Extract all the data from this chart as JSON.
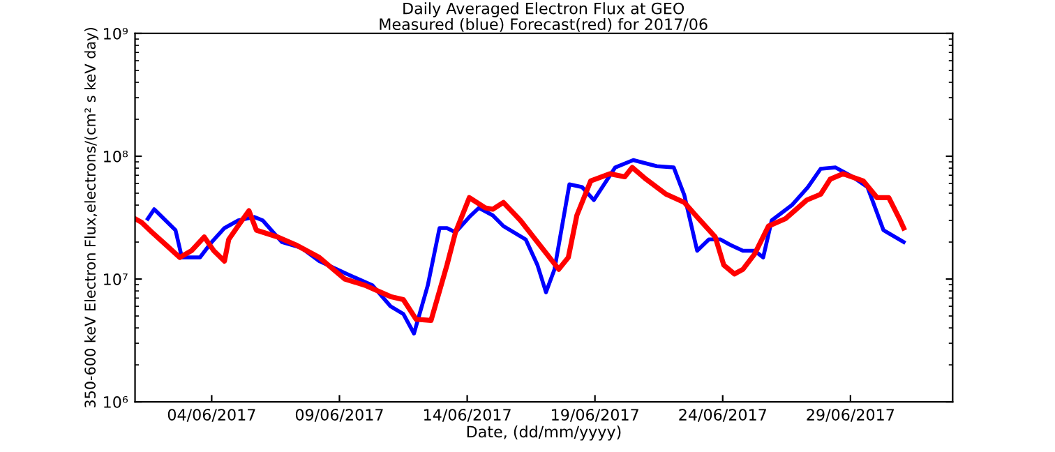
{
  "chart_data": {
    "type": "line",
    "title": "Daily Averaged Electron Flux at GEO",
    "subtitle": "Measured (blue) Forecast(red) for 2017/06",
    "xlabel": "Date, (dd/mm/yyyy)",
    "ylabel": "350-600 keV Electron Flux,electrons/(cm² s keV day)",
    "log": "y",
    "grid": false,
    "marker": "none",
    "line_style": "solid",
    "xlim": [
      "2017-06-01",
      "2017-07-03"
    ],
    "xticks": [
      {
        "value": "2017-06-04",
        "label": "04/06/2017"
      },
      {
        "value": "2017-06-09",
        "label": "09/06/2017"
      },
      {
        "value": "2017-06-14",
        "label": "14/06/2017"
      },
      {
        "value": "2017-06-19",
        "label": "19/06/2017"
      },
      {
        "value": "2017-06-24",
        "label": "24/06/2017"
      },
      {
        "value": "2017-06-29",
        "label": "29/06/2017"
      }
    ],
    "ylim": [
      1000000,
      1000000000
    ],
    "yticks": [
      {
        "value": 1000000,
        "label": "10⁶"
      },
      {
        "value": 10000000,
        "label": "10⁷"
      },
      {
        "value": 100000000,
        "label": "10⁸"
      },
      {
        "value": 1000000000,
        "label": "10⁹"
      }
    ],
    "series": [
      {
        "color": "#0000ff",
        "x": [
          "2017-06-01T12:00",
          "2017-06-01T18:00",
          "2017-06-02T14:00",
          "2017-06-02T20:00",
          "2017-06-03T05:00",
          "2017-06-03T13:00",
          "2017-06-04T00:00",
          "2017-06-04T12:00",
          "2017-06-05T01:00",
          "2017-06-05T16:00",
          "2017-06-06T00:00",
          "2017-06-06T18:00",
          "2017-06-07T12:00",
          "2017-06-08T05:00",
          "2017-06-09T07:00",
          "2017-06-10T07:00",
          "2017-06-11T00:00",
          "2017-06-11T12:00",
          "2017-06-11T22:00",
          "2017-06-12T11:00",
          "2017-06-12T22:00",
          "2017-06-13T05:00",
          "2017-06-13T13:00",
          "2017-06-14T02:00",
          "2017-06-14T11:00",
          "2017-06-15T00:00",
          "2017-06-15T10:00",
          "2017-06-16T07:00",
          "2017-06-16T18:00",
          "2017-06-17T02:00",
          "2017-06-17T10:00",
          "2017-06-18T00:00",
          "2017-06-18T12:00",
          "2017-06-18T23:00",
          "2017-06-19T19:00",
          "2017-06-20T12:00",
          "2017-06-21T10:00",
          "2017-06-22T02:00",
          "2017-06-22T12:00",
          "2017-06-23T00:00",
          "2017-06-23T11:00",
          "2017-06-23T22:00",
          "2017-06-24T07:00",
          "2017-06-24T19:00",
          "2017-06-25T06:00",
          "2017-06-25T14:00",
          "2017-06-25T22:00",
          "2017-06-26T17:00",
          "2017-06-27T08:00",
          "2017-06-27T20:00",
          "2017-06-28T10:00",
          "2017-06-29T02:00",
          "2017-06-29T16:00",
          "2017-06-30T07:00",
          "2017-07-01T02:00"
        ],
        "values": [
          31000000.0,
          37000000.0,
          25000000.0,
          15000000.0,
          15000000.0,
          15000000.0,
          20000000.0,
          26000000.0,
          30000000.0,
          32000000.0,
          30000000.0,
          20000000.0,
          18000000.0,
          14000000.0,
          11000000.0,
          8900000.0,
          6000000.0,
          5200000.0,
          3600000.0,
          8900000.0,
          26000000.0,
          26000000.0,
          24000000.0,
          32000000.0,
          38000000.0,
          33000000.0,
          27000000.0,
          21000000.0,
          13000000.0,
          7800000.0,
          12000000.0,
          59000000.0,
          56000000.0,
          44000000.0,
          81000000.0,
          93000000.0,
          83000000.0,
          81000000.0,
          48000000.0,
          17000000.0,
          21000000.0,
          21000000.0,
          19000000.0,
          17000000.0,
          17000000.0,
          15000000.0,
          30000000.0,
          40000000.0,
          56000000.0,
          79000000.0,
          81000000.0,
          68000000.0,
          56000000.0,
          25000000.0,
          20000000.0
        ]
      },
      {
        "color": "#ff0000",
        "x": [
          "2017-06-01T00:00",
          "2017-06-01T06:00",
          "2017-06-01T16:00",
          "2017-06-02T05:00",
          "2017-06-02T18:00",
          "2017-06-03T05:00",
          "2017-06-03T17:00",
          "2017-06-04T02:00",
          "2017-06-04T12:00",
          "2017-06-04T16:00",
          "2017-06-05T02:00",
          "2017-06-05T11:00",
          "2017-06-05T18:00",
          "2017-06-06T14:00",
          "2017-06-07T07:00",
          "2017-06-08T05:00",
          "2017-06-09T05:00",
          "2017-06-10T00:00",
          "2017-06-11T00:00",
          "2017-06-11T12:00",
          "2017-06-12T00:00",
          "2017-06-12T14:00",
          "2017-06-13T05:00",
          "2017-06-13T13:00",
          "2017-06-14T02:00",
          "2017-06-14T17:00",
          "2017-06-15T00:00",
          "2017-06-15T10:00",
          "2017-06-16T02:00",
          "2017-06-16T20:00",
          "2017-06-17T14:00",
          "2017-06-17T23:00",
          "2017-06-18T07:00",
          "2017-06-18T20:00",
          "2017-06-19T14:00",
          "2017-06-20T04:00",
          "2017-06-20T11:00",
          "2017-06-21T00:00",
          "2017-06-21T19:00",
          "2017-06-22T12:00",
          "2017-06-23T00:00",
          "2017-06-23T17:00",
          "2017-06-24T01:00",
          "2017-06-24T11:00",
          "2017-06-24T19:00",
          "2017-06-25T06:00",
          "2017-06-25T19:00",
          "2017-06-26T11:00",
          "2017-06-27T07:00",
          "2017-06-27T20:00",
          "2017-06-28T05:00",
          "2017-06-28T17:00",
          "2017-06-29T12:00",
          "2017-06-30T01:00",
          "2017-06-30T12:00",
          "2017-06-30T22:00",
          "2017-07-01T02:00"
        ],
        "values": [
          31000000.0,
          29000000.0,
          24000000.0,
          19000000.0,
          15000000.0,
          17000000.0,
          22000000.0,
          17000000.0,
          14000000.0,
          21000000.0,
          28000000.0,
          36000000.0,
          25000000.0,
          22000000.0,
          19000000.0,
          15000000.0,
          10000000.0,
          8900000.0,
          7200000.0,
          6800000.0,
          4700000.0,
          4600000.0,
          13000000.0,
          24000000.0,
          46000000.0,
          38000000.0,
          37000000.0,
          42000000.0,
          30000000.0,
          19000000.0,
          12000000.0,
          15000000.0,
          33000000.0,
          63000000.0,
          72000000.0,
          68000000.0,
          81000000.0,
          65000000.0,
          49000000.0,
          42000000.0,
          32000000.0,
          22000000.0,
          13000000.0,
          11000000.0,
          12000000.0,
          16000000.0,
          27000000.0,
          31000000.0,
          44000000.0,
          49000000.0,
          65000000.0,
          72000000.0,
          63000000.0,
          46000000.0,
          46000000.0,
          31000000.0,
          26000000.0
        ]
      }
    ]
  }
}
